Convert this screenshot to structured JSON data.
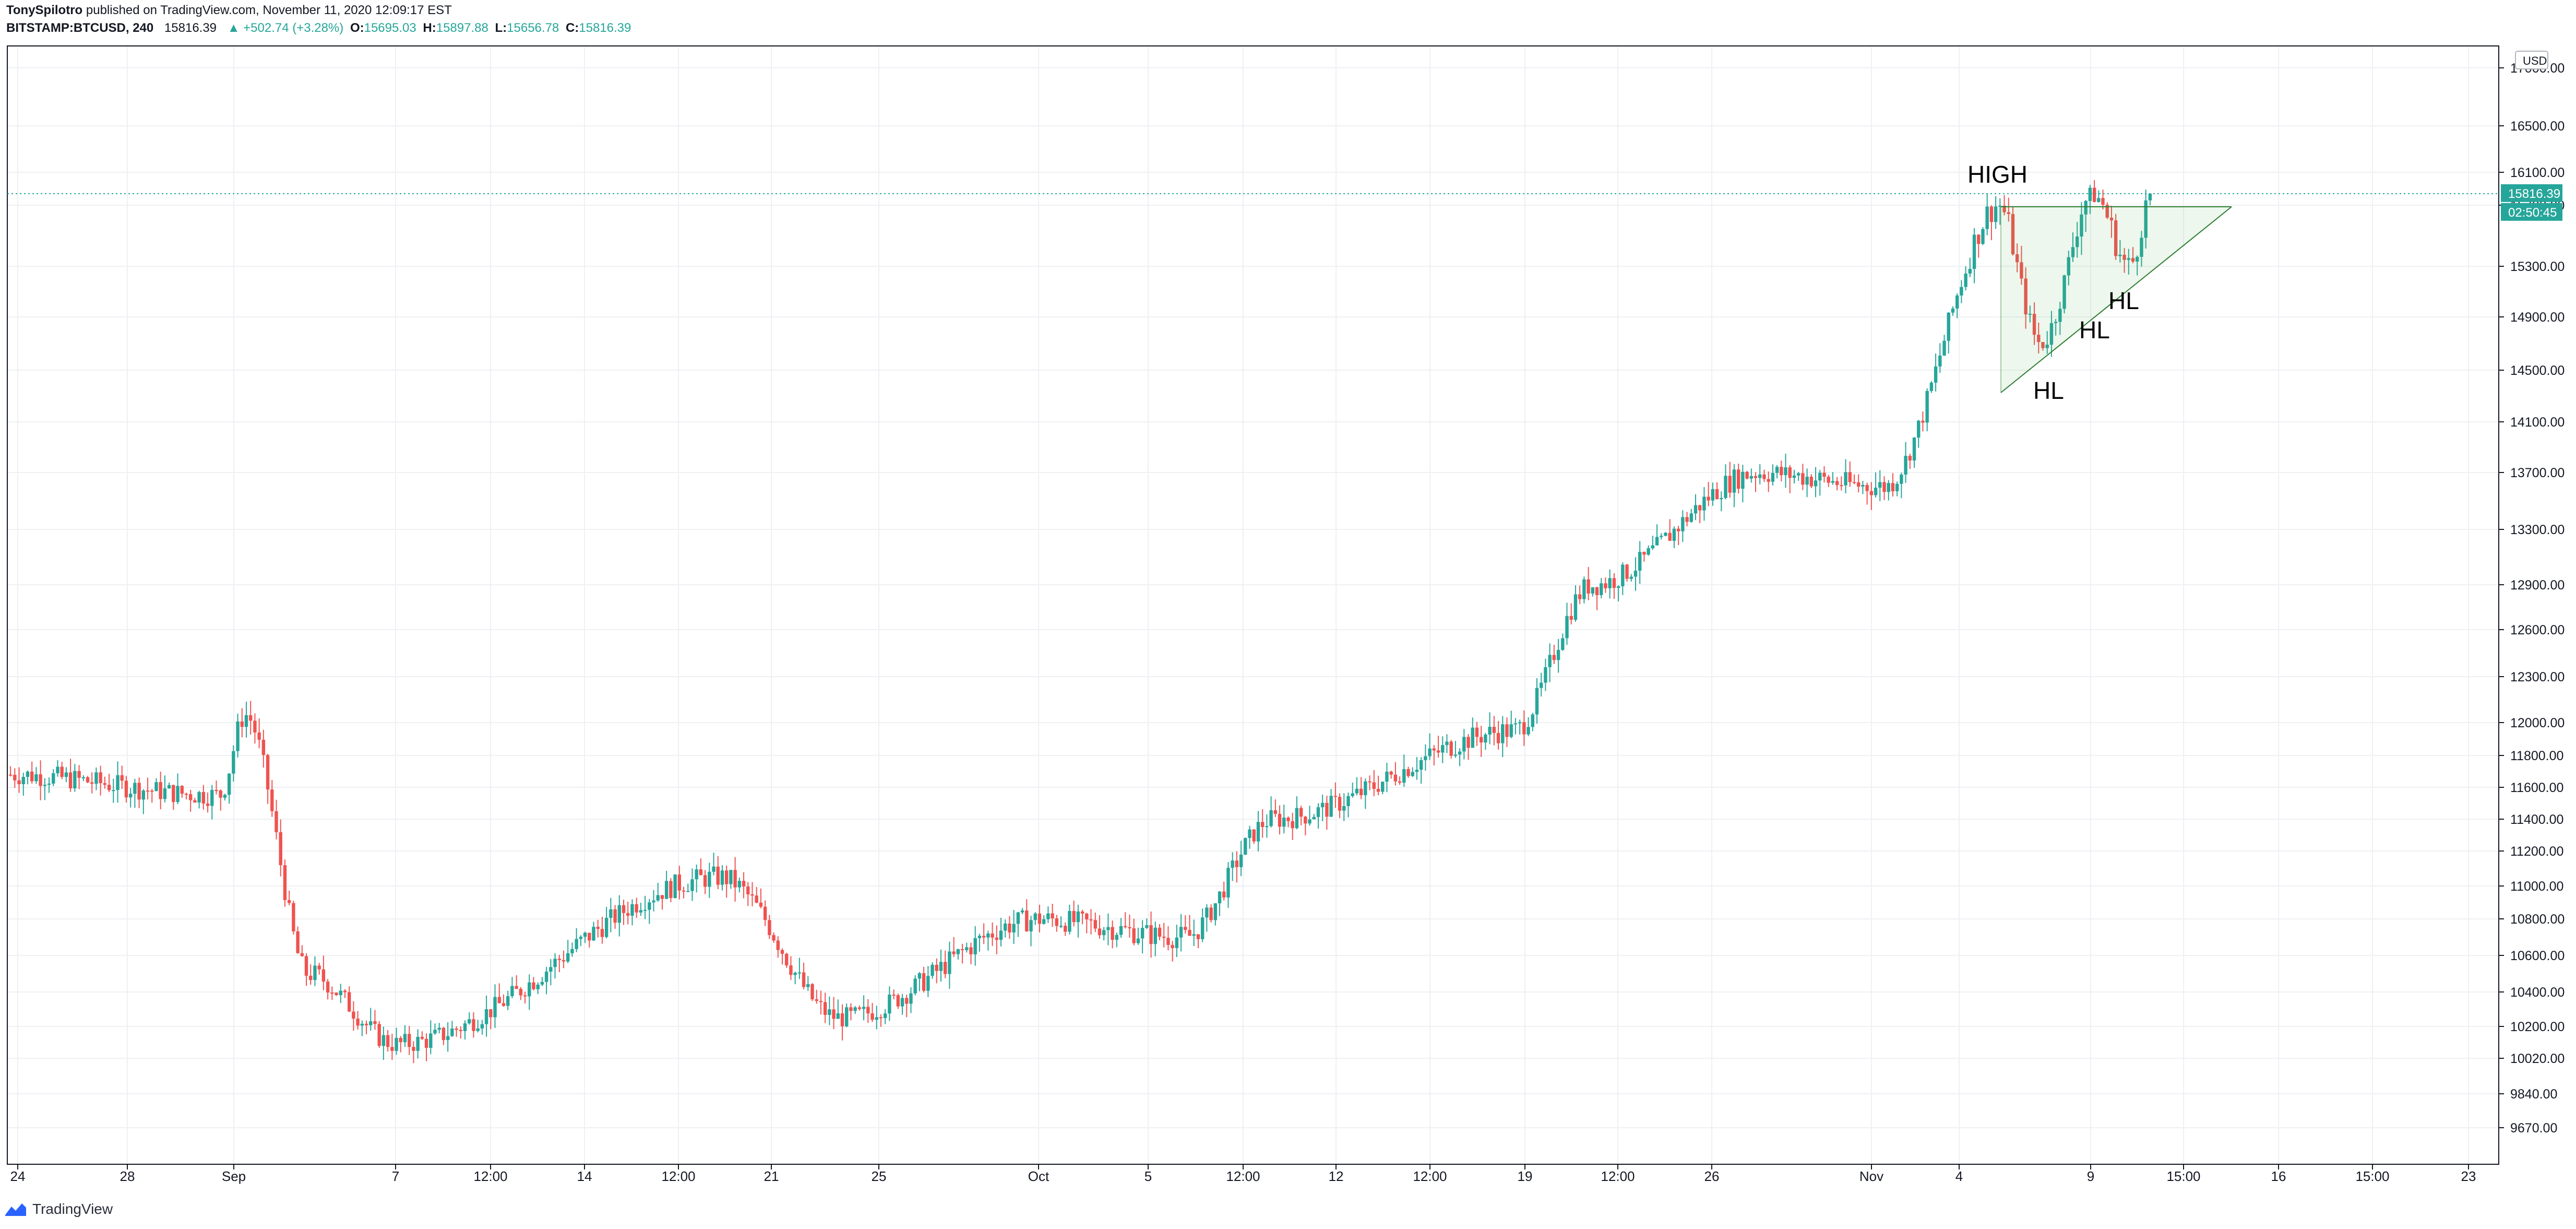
{
  "header": {
    "publisher": "TonySpilotro",
    "published_text": "published on TradingView.com, November 11, 2020 12:09:17 EST",
    "symbol": "BITSTAMP:BTCUSD, 240",
    "price": "15816.39",
    "change": "▲ +502.74 (+3.28%)",
    "o_label": "O:",
    "o_value": "15695.03",
    "h_label": "H:",
    "h_value": "15897.88",
    "l_label": "L:",
    "l_value": "15656.78",
    "c_label": "C:",
    "c_value": "15816.39"
  },
  "footer": {
    "brand": "TradingView",
    "brand_icon": "tradingview-logo-icon"
  },
  "colors": {
    "up": "#26a69a",
    "down": "#ef5350",
    "grid": "#eef0f3",
    "axis": "#131722"
  },
  "chart_data": {
    "type": "candlestick",
    "y_axis": {
      "currency": "USD",
      "ticks": [
        "17000.00",
        "16500.00",
        "16100.00",
        "15700.00",
        "15300.00",
        "14900.00",
        "14500.00",
        "14100.00",
        "13700.00",
        "13300.00",
        "12900.00",
        "12600.00",
        "12300.00",
        "12000.00",
        "11800.00",
        "11600.00",
        "11400.00",
        "11200.00",
        "11000.00",
        "10800.00",
        "10600.00",
        "10400.00",
        "10200.00",
        "10020.00",
        "9840.00",
        "9670.00"
      ],
      "scale": "log",
      "range": [
        9560,
        17200
      ]
    },
    "x_axis": {
      "ticks": [
        "24",
        "28",
        "Sep",
        "7",
        "12:00",
        "14",
        "12:00",
        "21",
        "25",
        "Oct",
        "5",
        "12:00",
        "12",
        "12:00",
        "19",
        "12:00",
        "26",
        "Nov",
        "4",
        "9",
        "15:00",
        "16",
        "15:00",
        "23"
      ]
    },
    "last_price": {
      "value": "15816.39",
      "countdown": "02:50:45"
    },
    "annotations": {
      "high": "HIGH",
      "higher_lows": [
        "HL",
        "HL",
        "HL"
      ]
    },
    "pattern": "ascending-triangle",
    "key_points": [
      {
        "date": "Aug 22",
        "price": 11680
      },
      {
        "date": "Aug 30",
        "price": 11550
      },
      {
        "date": "Sep 2",
        "price": 12050
      },
      {
        "date": "Sep 4",
        "price": 10500
      },
      {
        "date": "Sep 8",
        "price": 10100
      },
      {
        "date": "Sep 18",
        "price": 11050
      },
      {
        "date": "Sep 23",
        "price": 10250
      },
      {
        "date": "Oct 1",
        "price": 10800
      },
      {
        "date": "Oct 8",
        "price": 10700
      },
      {
        "date": "Oct 10",
        "price": 11400
      },
      {
        "date": "Oct 20",
        "price": 11950
      },
      {
        "date": "Oct 21",
        "price": 12900
      },
      {
        "date": "Oct 27",
        "price": 13700
      },
      {
        "date": "Oct 31",
        "price": 13600
      },
      {
        "date": "Nov 5",
        "price": 15700
      },
      {
        "date": "Nov 7",
        "price": 14700
      },
      {
        "date": "Nov 9",
        "price": 15800
      },
      {
        "date": "Nov 10",
        "price": 15300
      },
      {
        "date": "Nov 11",
        "price": 15816.39
      }
    ]
  }
}
